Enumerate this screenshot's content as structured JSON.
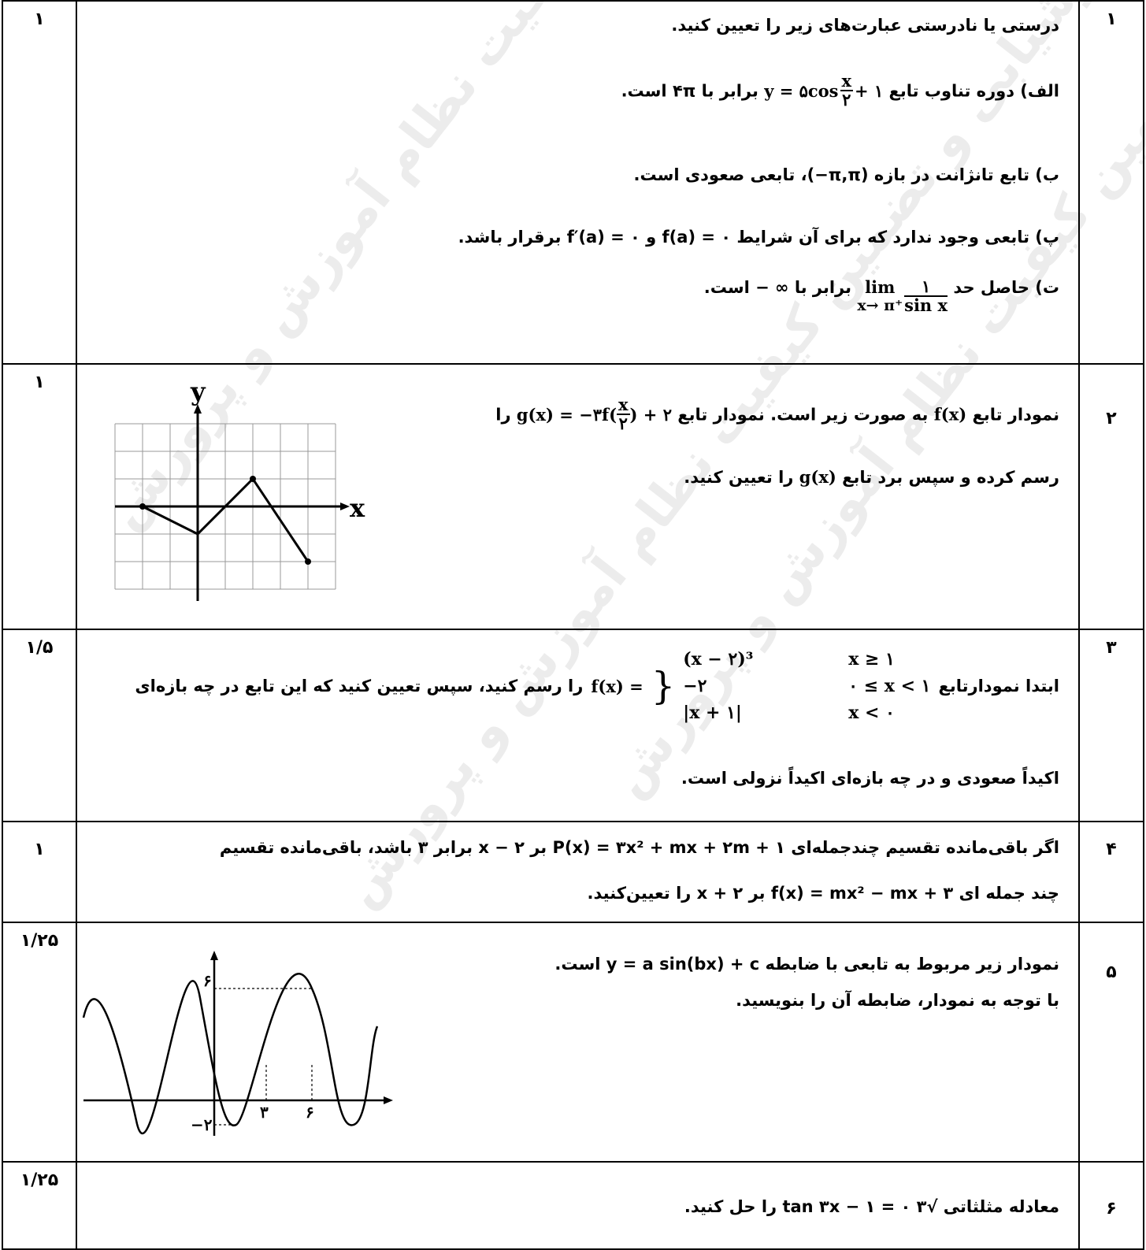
{
  "questions": [
    {
      "number": "۱",
      "score": "۱",
      "title": "درستی یا نادرستی عبارت‌های زیر را تعیین کنید.",
      "a": {
        "pre": "الف) دوره تناوب تابع",
        "formula": "y = ۵cos",
        "frac_top": "x",
        "frac_bottom": "۲",
        "formula_tail": "+ ۱",
        "post": "برابر با ۴π است."
      },
      "b": "ب) تابع تانژانت در بازه (π,π−)، تابعی صعودی است.",
      "c": "پ) تابعی وجود ندارد که برای آن شرایط f(a) = ۰ و f′(a) = ۰ برقرار باشد.",
      "d": {
        "pre": "ت) حاصل حد",
        "lim": "lim",
        "lim_sub": "x→ π⁺",
        "frac_top": "۱",
        "frac_bottom": "sin x",
        "post": "برابر با ∞ − است."
      }
    },
    {
      "number": "۲",
      "score": "۱",
      "line1_pre": "نمودار تابع",
      "line1_fx": "f(x)",
      "line1_mid": "به صورت زیر است. نمودار تابع",
      "line1_formula": "g(x) = −۳f(",
      "line1_frac_top": "x",
      "line1_frac_bottom": "۲",
      "line1_tail": ") + ۲",
      "line1_post": "را",
      "line2_pre": "رسم کرده و سپس برد تابع",
      "line2_gx": "g(x)",
      "line2_post": "را تعیین کنید.",
      "graph": {
        "y_label": "y",
        "x_label": "x"
      }
    },
    {
      "number": "۳",
      "score": "۱/۵",
      "line1_pre": "ابتدا نمودارتابع",
      "fx": "f(x) =",
      "cases": [
        {
          "expr": "(x − ۲)³",
          "cond": "x ≥ ۱"
        },
        {
          "expr": "−۲",
          "cond": "۰ ≤ x < ۱"
        },
        {
          "expr": "|x + ۱|",
          "cond": "x < ۰"
        }
      ],
      "line1_post": "را رسم کنید، سپس تعیین کنید که این تابع در چه بازه‌ای",
      "line2": "اکیداً صعودی و در چه بازه‌ای اکیداً نزولی است."
    },
    {
      "number": "۴",
      "score": "۱",
      "line1": "اگر باقی‌مانده تقسیم چندجمله‌ای P(x) = ۳x² + mx + ۲m + ۱ بر x − ۲ برابر ۳ باشد، باقی‌مانده تقسیم",
      "line2": "چند جمله ای f(x) = mx² − mx + ۳ بر x + ۲ را تعیین‌کنید."
    },
    {
      "number": "۵",
      "score": "۱/۲۵",
      "line1": "نمودار زیر مربوط به تابعی با ضابطه y = a sin(bx) + c است.",
      "line2": "با توجه به نمودار، ضابطه آن را بنویسید.",
      "graph": {
        "max_label": "۶",
        "min_label": "−۲",
        "tick1": "۳",
        "tick2": "۶"
      }
    },
    {
      "number": "۶",
      "score": "۱/۲۵",
      "line1": "معادله مثلثاتی √۳ tan ۳x − ۱ = ۰ را حل کنید."
    }
  ],
  "watermark": "مرکز ارزشیابی و تضمین کیفیت نظام آموزش و پرورش"
}
